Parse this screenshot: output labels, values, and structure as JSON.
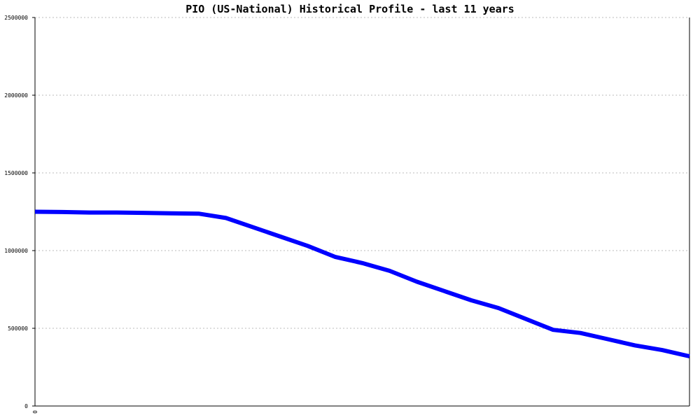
{
  "chart_data": {
    "type": "line",
    "title": "PIO (US-National) Historical Profile - last 11 years",
    "xlabel": "",
    "ylabel": "",
    "x_ticks": [
      "0"
    ],
    "y_ticks": [
      "0",
      "500000",
      "1000000",
      "1500000",
      "2000000",
      "2500000"
    ],
    "ylim": [
      0,
      2500000
    ],
    "grid": "horizontal-dashed",
    "series_color": "#0000ff",
    "series": [
      {
        "values": [
          1250000,
          1248000,
          1245000,
          1245000,
          1243000,
          1240000,
          1238000,
          1210000,
          1150000,
          1090000,
          1030000,
          960000,
          920000,
          870000,
          800000,
          740000,
          680000,
          630000,
          560000,
          490000,
          470000,
          430000,
          390000,
          360000,
          320000
        ]
      }
    ]
  }
}
